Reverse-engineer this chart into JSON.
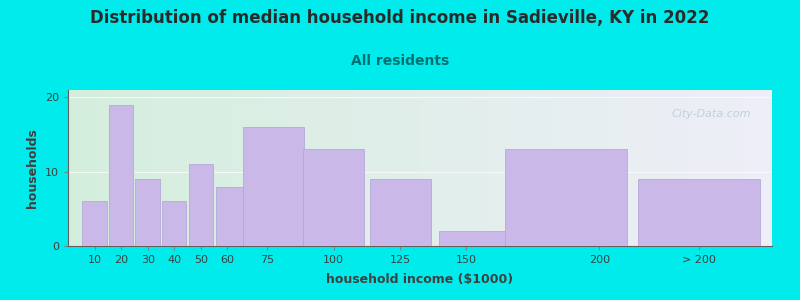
{
  "title": "Distribution of median household income in Sadieville, KY in 2022",
  "subtitle": "All residents",
  "xlabel": "household income ($1000)",
  "ylabel": "households",
  "bar_values": [
    6,
    19,
    9,
    6,
    11,
    8,
    16,
    13,
    9,
    2,
    13,
    9
  ],
  "bar_widths": [
    10,
    10,
    10,
    10,
    10,
    15,
    25,
    25,
    25,
    50,
    50,
    50
  ],
  "bar_lefts": [
    5,
    15,
    25,
    35,
    45,
    55,
    65,
    87.5,
    112.5,
    137.5,
    162.5,
    212.5
  ],
  "bar_color": "#c9b8e8",
  "bar_edgecolor": "#b0a0d5",
  "background_color": "#00ebeb",
  "plot_bg_gradient_left": "#d4eedd",
  "plot_bg_gradient_right": "#eeeef8",
  "title_fontsize": 12,
  "title_color": "#2a2a2a",
  "subtitle_fontsize": 10,
  "subtitle_color": "#007070",
  "xlabel_fontsize": 9,
  "ylabel_fontsize": 9,
  "axis_label_color": "#404040",
  "ylim": [
    0,
    21
  ],
  "yticks": [
    0,
    10,
    20
  ],
  "xtick_positions": [
    10,
    20,
    30,
    40,
    50,
    60,
    75,
    100,
    125,
    150,
    200,
    237.5
  ],
  "xtick_labels": [
    "10",
    "20",
    "30",
    "40",
    "50",
    "60",
    "75",
    "100",
    "125",
    "150",
    "200",
    "> 200"
  ],
  "xlim": [
    0,
    265
  ],
  "watermark_text": "City-Data.com",
  "watermark_color": "#a0b8c8",
  "watermark_alpha": 0.55
}
